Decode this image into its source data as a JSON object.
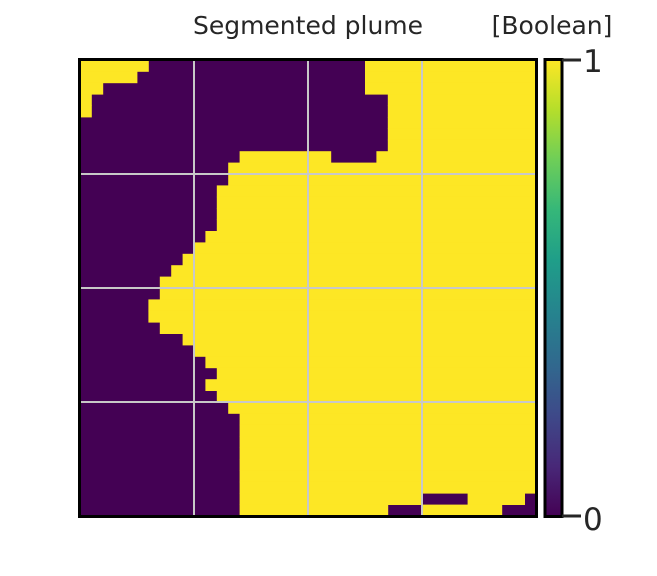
{
  "chart_data": {
    "type": "heatmap",
    "title": "Segmented plume",
    "colorbar_label": "[Boolean]",
    "colorbar_ticks": [
      "1",
      "0"
    ],
    "value_range": [
      0,
      1
    ],
    "colormap": "viridis",
    "colors": {
      "low": "#440154",
      "high": "#fde725",
      "grid": "#c8c8c8",
      "frame": "#000000"
    },
    "grid": true,
    "grid_divisions": 4,
    "mask_rows": 40,
    "mask_cols": 40,
    "mask_runs": [
      [
        [
          0,
          6
        ],
        [
          25,
          40
        ]
      ],
      [
        [
          0,
          5
        ],
        [
          25,
          40
        ]
      ],
      [
        [
          0,
          2
        ],
        [
          25,
          40
        ]
      ],
      [
        [
          0,
          1
        ],
        [
          27,
          40
        ]
      ],
      [
        [
          0,
          1
        ],
        [
          27,
          40
        ]
      ],
      [
        [
          27,
          40
        ]
      ],
      [
        [
          27,
          40
        ]
      ],
      [
        [
          27,
          40
        ]
      ],
      [
        [
          14,
          22
        ],
        [
          26,
          40
        ]
      ],
      [
        [
          13,
          40
        ]
      ],
      [
        [
          13,
          40
        ]
      ],
      [
        [
          12,
          40
        ]
      ],
      [
        [
          12,
          40
        ]
      ],
      [
        [
          12,
          40
        ]
      ],
      [
        [
          12,
          40
        ]
      ],
      [
        [
          11,
          40
        ]
      ],
      [
        [
          10,
          40
        ]
      ],
      [
        [
          9,
          40
        ]
      ],
      [
        [
          8,
          40
        ]
      ],
      [
        [
          7,
          40
        ]
      ],
      [
        [
          7,
          40
        ]
      ],
      [
        [
          6,
          40
        ]
      ],
      [
        [
          6,
          40
        ]
      ],
      [
        [
          7,
          40
        ]
      ],
      [
        [
          9,
          40
        ]
      ],
      [
        [
          10,
          40
        ]
      ],
      [
        [
          11,
          40
        ]
      ],
      [
        [
          12,
          40
        ]
      ],
      [
        [
          11,
          40
        ]
      ],
      [
        [
          12,
          40
        ]
      ],
      [
        [
          13,
          40
        ]
      ],
      [
        [
          14,
          40
        ]
      ],
      [
        [
          14,
          40
        ]
      ],
      [
        [
          14,
          40
        ]
      ],
      [
        [
          14,
          40
        ]
      ],
      [
        [
          14,
          40
        ]
      ],
      [
        [
          14,
          40
        ]
      ],
      [
        [
          14,
          40
        ]
      ],
      [
        [
          14,
          30
        ],
        [
          34,
          39
        ]
      ],
      [
        [
          14,
          27
        ],
        [
          30,
          37
        ]
      ]
    ]
  }
}
